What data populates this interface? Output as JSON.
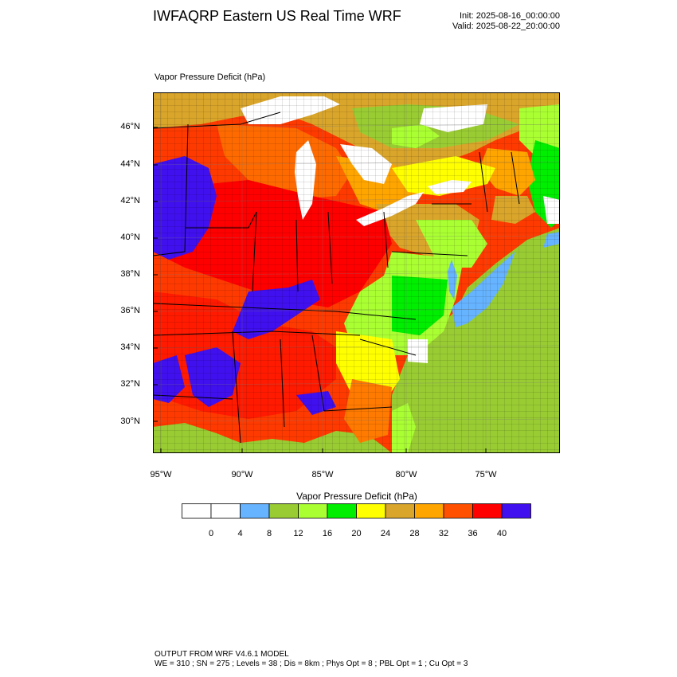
{
  "header": {
    "title": "IWFAQRP Eastern US Real Time WRF",
    "init": "Init: 2025-08-16_00:00:00",
    "valid": "Valid: 2025-08-22_20:00:00"
  },
  "map": {
    "variable_label": "Vapor Pressure Deficit   (hPa)",
    "lat_ticks": [
      "46°N",
      "44°N",
      "42°N",
      "40°N",
      "38°N",
      "36°N",
      "34°N",
      "32°N",
      "30°N"
    ],
    "lon_ticks": [
      "95°W",
      "90°W",
      "85°W",
      "80°W",
      "75°W"
    ],
    "lakes_color": "#ffffff",
    "ocean_color": "#99cc33"
  },
  "colorbar": {
    "title": "Vapor Pressure Deficit   (hPa)",
    "labels": [
      "0",
      "4",
      "8",
      "12",
      "16",
      "20",
      "24",
      "28",
      "32",
      "36",
      "40"
    ],
    "colors": [
      "#ffffff",
      "#ffffff",
      "#66b3ff",
      "#99cc33",
      "#aaff33",
      "#00ee00",
      "#ffff00",
      "#d9a52a",
      "#ffa500",
      "#ff5000",
      "#ff0000",
      "#4010ee"
    ]
  },
  "footer": {
    "line1": "OUTPUT FROM WRF V4.6.1 MODEL",
    "line2": "WE = 310 ; SN = 275 ; Levels = 38 ; Dis = 8km ; Phys Opt = 8 ; PBL Opt = 1 ; Cu Opt = 3"
  }
}
